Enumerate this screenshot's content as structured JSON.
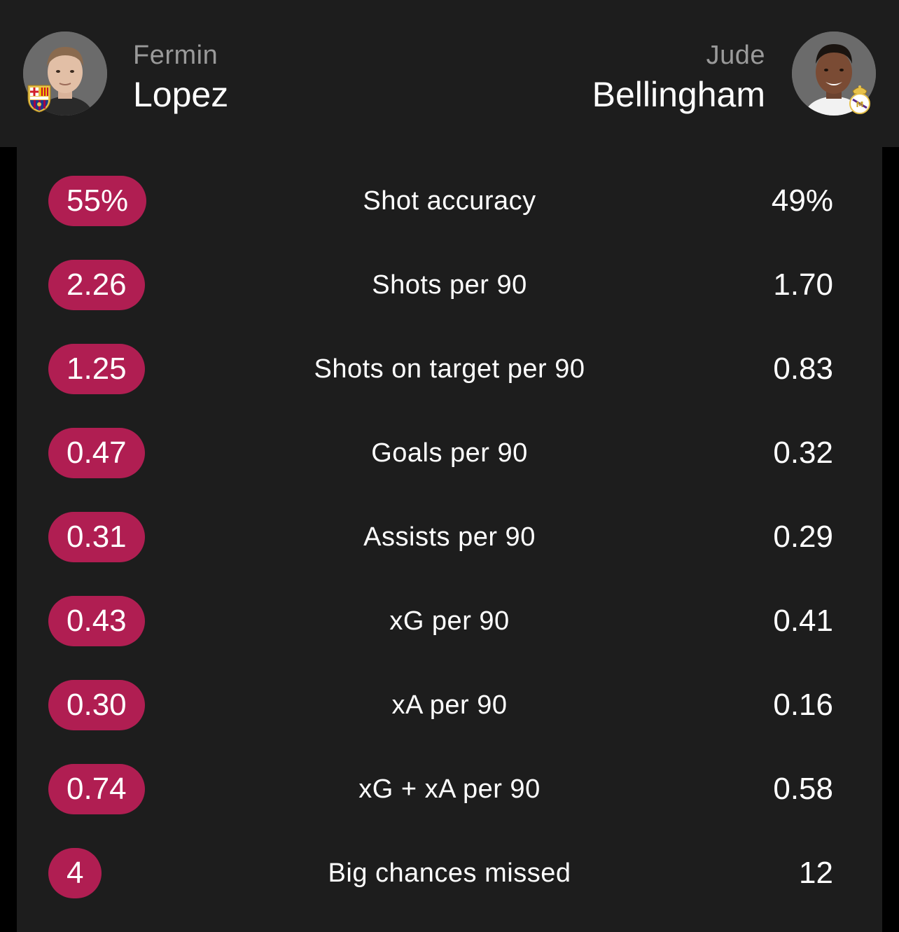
{
  "player_left": {
    "first_name": "Fermin",
    "last_name": "Lopez",
    "club_crest": "fc-barcelona-crest-icon"
  },
  "player_right": {
    "first_name": "Jude",
    "last_name": "Bellingham",
    "club_crest": "real-madrid-crest-icon"
  },
  "colors": {
    "background": "#1d1d1d",
    "highlight_pill": "#b01e52",
    "first_name_gray": "#9a9a9a"
  },
  "stats": [
    {
      "label": "Shot accuracy",
      "left": "55%",
      "right": "49%"
    },
    {
      "label": "Shots per 90",
      "left": "2.26",
      "right": "1.70"
    },
    {
      "label": "Shots on target per 90",
      "left": "1.25",
      "right": "0.83"
    },
    {
      "label": "Goals per 90",
      "left": "0.47",
      "right": "0.32"
    },
    {
      "label": "Assists per 90",
      "left": "0.31",
      "right": "0.29"
    },
    {
      "label": "xG per 90",
      "left": "0.43",
      "right": "0.41"
    },
    {
      "label": "xA per 90",
      "left": "0.30",
      "right": "0.16"
    },
    {
      "label": "xG + xA per 90",
      "left": "0.74",
      "right": "0.58"
    },
    {
      "label": "Big chances missed",
      "left": "4",
      "right": "12"
    }
  ]
}
